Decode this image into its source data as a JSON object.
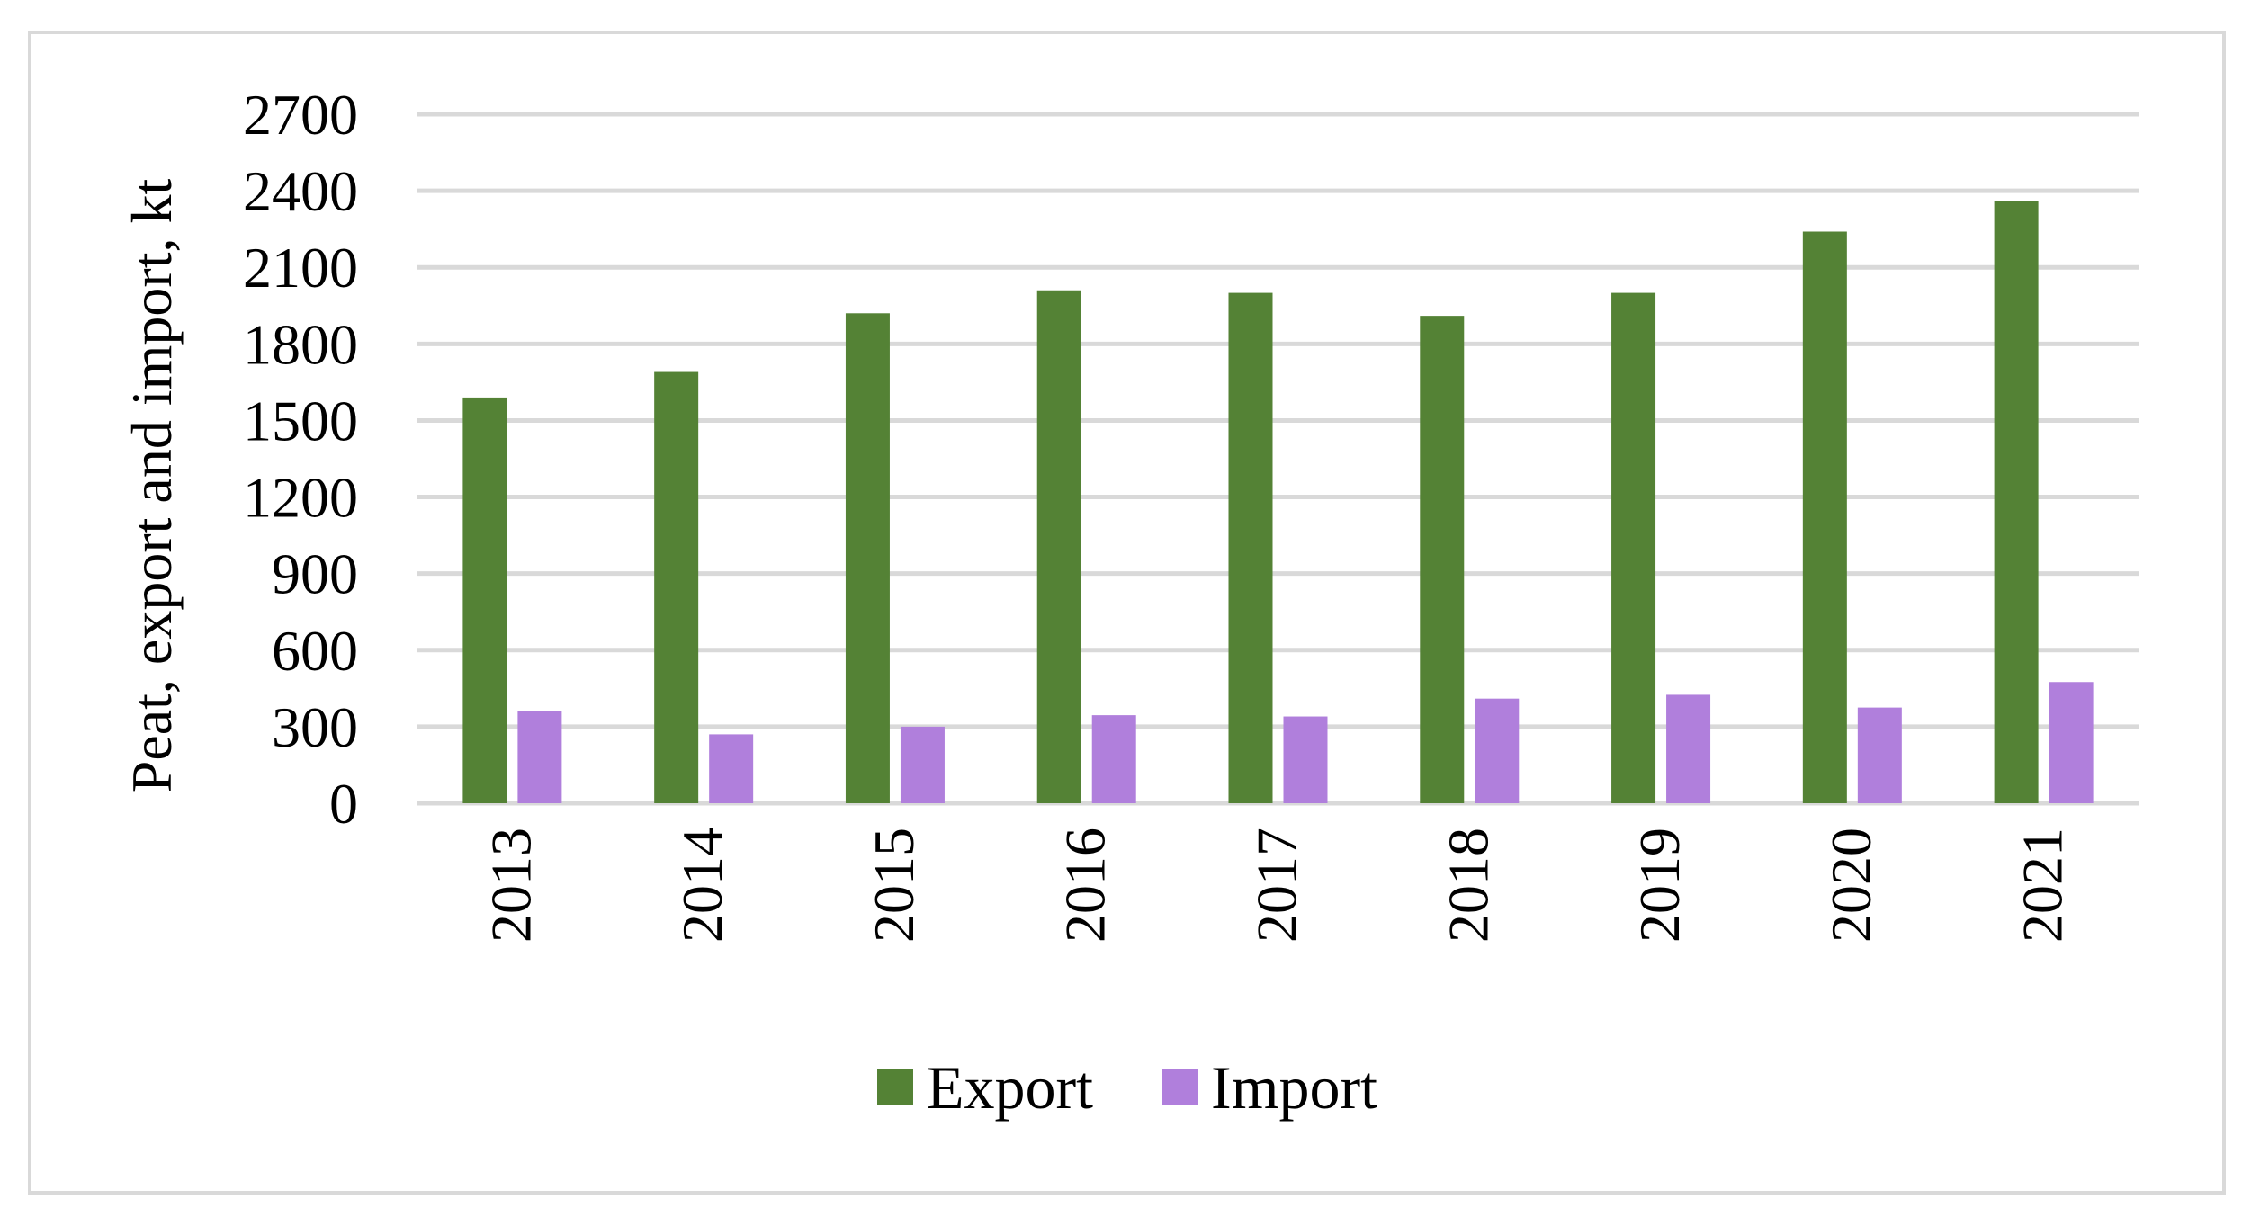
{
  "colors": {
    "export": "#548235",
    "import": "#b07fdc",
    "grid": "#d9d9d9",
    "frame": "#d9d9d9"
  },
  "chart_data": {
    "type": "bar",
    "categories": [
      "2013",
      "2014",
      "2015",
      "2016",
      "2017",
      "2018",
      "2019",
      "2020",
      "2021"
    ],
    "series": [
      {
        "name": "Export",
        "values": [
          1590,
          1690,
          1920,
          2010,
          2000,
          1910,
          2000,
          2240,
          2360
        ]
      },
      {
        "name": "Import",
        "values": [
          360,
          270,
          300,
          345,
          340,
          410,
          425,
          375,
          475
        ]
      }
    ],
    "title": "",
    "xlabel": "",
    "ylabel": "Peat, export and import, kt",
    "ylim": [
      0,
      2700
    ],
    "yticks": [
      "0",
      "300",
      "600",
      "900",
      "1200",
      "1500",
      "1800",
      "2100",
      "2400",
      "2700"
    ],
    "grid": true,
    "legend_position": "bottom"
  }
}
